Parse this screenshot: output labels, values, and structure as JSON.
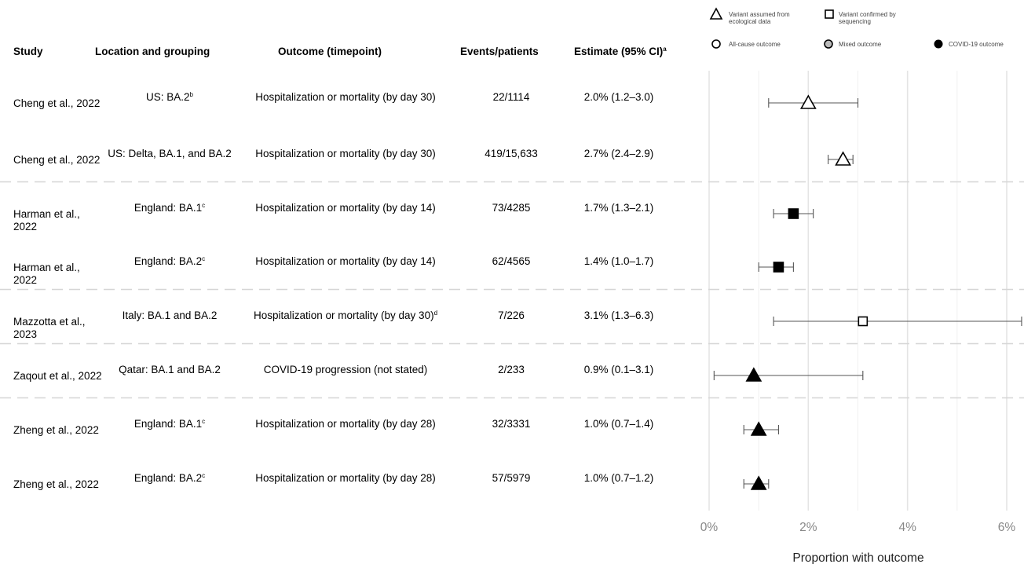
{
  "headers": {
    "study": "Study",
    "location": "Location and grouping",
    "outcome": "Outcome (timepoint)",
    "events": "Events/patients",
    "estimate": "Estimate (95% CI)",
    "estimate_sup": "a"
  },
  "legend": {
    "triangle": "Variant assumed from ecological data",
    "square": "Variant confirmed by sequencing",
    "all_cause": "All-cause outcome",
    "mixed": "Mixed outcome",
    "covid": "COVID-19 outcome"
  },
  "rows": [
    {
      "study": "Cheng et al., 2022",
      "location": "US: BA.2",
      "location_sup": "b",
      "outcome": "Hospitalization or mortality (by day 30)",
      "outcome_sup": "",
      "events": "22/1114",
      "estimate": "2.0% (1.2–3.0)"
    },
    {
      "study": "Cheng et al., 2022",
      "location": "US: Delta, BA.1, and BA.2",
      "location_sup": "",
      "outcome": "Hospitalization or mortality (by day 30)",
      "outcome_sup": "",
      "events": "419/15,633",
      "estimate": "2.7% (2.4–2.9)"
    },
    {
      "study": "Harman et al., 2022",
      "location": "England: BA.1",
      "location_sup": "c",
      "outcome": "Hospitalization or mortality (by day 14)",
      "outcome_sup": "",
      "events": "73/4285",
      "estimate": "1.7% (1.3–2.1)"
    },
    {
      "study": "Harman et al., 2022",
      "location": "England: BA.2",
      "location_sup": "c",
      "outcome": "Hospitalization or mortality (by day 14)",
      "outcome_sup": "",
      "events": "62/4565",
      "estimate": "1.4% (1.0–1.7)"
    },
    {
      "study": "Mazzotta et al., 2023",
      "location": "Italy: BA.1 and BA.2",
      "location_sup": "",
      "outcome": "Hospitalization or mortality (by day 30)",
      "outcome_sup": "d",
      "events": "7/226",
      "estimate": "3.1% (1.3–6.3)"
    },
    {
      "study": "Zaqout et al., 2022",
      "location": "Qatar: BA.1 and BA.2",
      "location_sup": "",
      "outcome": "COVID-19 progression (not stated)",
      "outcome_sup": "",
      "events": "2/233",
      "estimate": "0.9% (0.1–3.1)"
    },
    {
      "study": "Zheng et al., 2022",
      "location": "England: BA.1",
      "location_sup": "c",
      "outcome": "Hospitalization or mortality (by day 28)",
      "outcome_sup": "",
      "events": "32/3331",
      "estimate": "1.0% (0.7–1.4)"
    },
    {
      "study": "Zheng et al., 2022",
      "location": "England: BA.2",
      "location_sup": "c",
      "outcome": "Hospitalization or mortality (by day 28)",
      "outcome_sup": "",
      "events": "57/5979",
      "estimate": "1.0% (0.7–1.2)"
    }
  ],
  "chart_data": {
    "type": "scatter",
    "subtype": "forest-plot",
    "xlabel": "Proportion with outcome",
    "xlim": [
      0,
      6
    ],
    "xticks": [
      0,
      2,
      4,
      6
    ],
    "xtick_labels": [
      "0%",
      "2%",
      "4%",
      "6%"
    ],
    "grid": "vertical",
    "points": [
      {
        "estimate": 2.0,
        "lower": 1.2,
        "upper": 3.0,
        "shape": "triangle",
        "fill": "open"
      },
      {
        "estimate": 2.7,
        "lower": 2.4,
        "upper": 2.9,
        "shape": "triangle",
        "fill": "open"
      },
      {
        "estimate": 1.7,
        "lower": 1.3,
        "upper": 2.1,
        "shape": "square",
        "fill": "solid"
      },
      {
        "estimate": 1.4,
        "lower": 1.0,
        "upper": 1.7,
        "shape": "square",
        "fill": "solid"
      },
      {
        "estimate": 3.1,
        "lower": 1.3,
        "upper": 6.3,
        "shape": "square",
        "fill": "open"
      },
      {
        "estimate": 0.9,
        "lower": 0.1,
        "upper": 3.1,
        "shape": "triangle",
        "fill": "solid"
      },
      {
        "estimate": 1.0,
        "lower": 0.7,
        "upper": 1.4,
        "shape": "triangle",
        "fill": "solid"
      },
      {
        "estimate": 1.0,
        "lower": 0.7,
        "upper": 1.2,
        "shape": "triangle",
        "fill": "solid"
      }
    ],
    "group_separators_after_rows": [
      1,
      3,
      4,
      5
    ],
    "colors": {
      "marker": "#000000",
      "whisker": "#666666",
      "grid": "#e8e8e8",
      "separator": "#d0d0d0"
    }
  }
}
